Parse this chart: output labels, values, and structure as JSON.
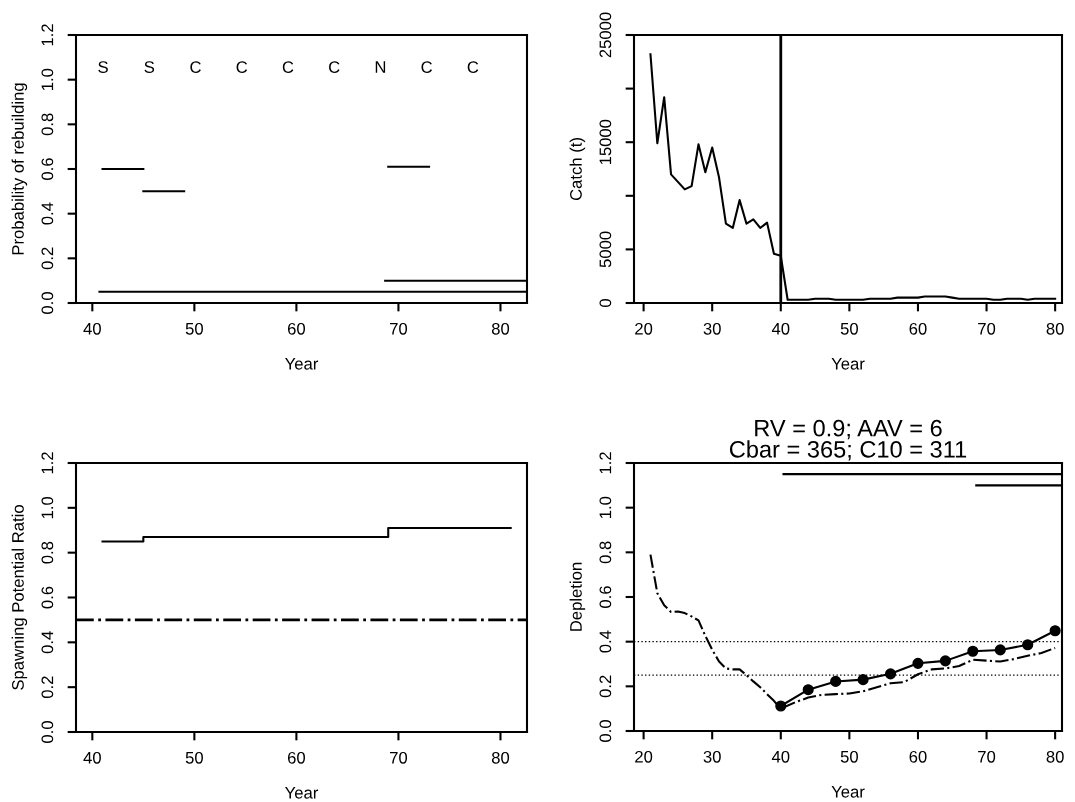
{
  "chart_data": [
    {
      "type": "line",
      "xlabel": "Year",
      "ylabel": "Probability of rebuilding",
      "xlim": [
        38.4,
        82.6
      ],
      "xticks": [
        40,
        50,
        60,
        70,
        80
      ],
      "ylim": [
        0,
        1.2
      ],
      "yticks": [
        {
          "value": 0,
          "label": "0.0"
        },
        {
          "value": 0.2,
          "label": "0.2"
        },
        {
          "value": 0.4,
          "label": "0.4"
        },
        {
          "value": 0.6,
          "label": "0.6"
        },
        {
          "value": 0.8,
          "label": "0.8"
        },
        {
          "value": 1.0,
          "label": "1.0"
        },
        {
          "value": 1.2,
          "label": "1.2"
        }
      ],
      "grid": false,
      "line_style": "solid",
      "series": [
        {
          "color": "#000000",
          "x": [
            41,
            45
          ],
          "values": [
            0.6,
            0.6
          ]
        },
        {
          "color": "#000000",
          "x": [
            45,
            49
          ],
          "values": [
            0.5,
            0.5
          ]
        },
        {
          "color": "#000000",
          "x": [
            69,
            73
          ],
          "values": [
            0.61,
            0.61
          ]
        },
        {
          "color": "#000000",
          "x": [
            40.7,
            82.6
          ],
          "values": [
            0.05,
            0.05
          ]
        },
        {
          "color": "#000000",
          "x": [
            68.7,
            82.6
          ],
          "values": [
            0.1,
            0.1
          ]
        }
      ],
      "annotations": [
        "S",
        "S",
        "C",
        "C",
        "C",
        "C",
        "N",
        "C",
        "C"
      ]
    },
    {
      "type": "line",
      "xlabel": "Year",
      "ylabel": "Catch (t)",
      "xlim": [
        18.6,
        81
      ],
      "xticks": [
        20,
        30,
        40,
        50,
        60,
        70,
        80
      ],
      "ylim": [
        0,
        25000
      ],
      "yticks": [
        0,
        5000,
        {
          "value": 10000,
          "label": null
        },
        15000,
        {
          "value": 20000,
          "label": null
        },
        25000
      ],
      "grid": false,
      "line_style": "solid",
      "series": [
        {
          "color": "#000000",
          "x": [
            21,
            22,
            23,
            24,
            25,
            26,
            27,
            28,
            29,
            30,
            31,
            32,
            33,
            34,
            35,
            36,
            37,
            38,
            39,
            40,
            41,
            42,
            43,
            44,
            45,
            46,
            47,
            48,
            49,
            50,
            51,
            52,
            53,
            54,
            55,
            56,
            57,
            58,
            59,
            60,
            61,
            62,
            63,
            64,
            65,
            66,
            67,
            68,
            69,
            70,
            71,
            72,
            73,
            74,
            75,
            76,
            77,
            78,
            79,
            80
          ],
          "values": [
            23200,
            14900,
            19200,
            12000,
            11300,
            10600,
            10900,
            14800,
            12200,
            14500,
            11700,
            7400,
            7000,
            9600,
            7400,
            7800,
            7000,
            7500,
            4600,
            4400,
            300,
            300,
            300,
            300,
            400,
            400,
            400,
            300,
            300,
            300,
            300,
            300,
            400,
            400,
            400,
            400,
            500,
            500,
            500,
            500,
            600,
            600,
            600,
            600,
            500,
            400,
            400,
            400,
            400,
            400,
            300,
            300,
            400,
            400,
            400,
            300,
            400,
            400,
            400,
            400
          ]
        }
      ],
      "ref_lines": [
        {
          "axis": "x",
          "value": 40,
          "label": null,
          "color": "#000000",
          "line_style": "solid"
        }
      ]
    },
    {
      "type": "step",
      "xlabel": "Year",
      "ylabel": "Spawning Potential Ratio",
      "xlim": [
        38.4,
        82.6
      ],
      "xticks": [
        40,
        50,
        60,
        70,
        80
      ],
      "ylim": [
        0,
        1.2
      ],
      "yticks": [
        {
          "value": 0,
          "label": "0.0"
        },
        {
          "value": 0.2,
          "label": "0.2"
        },
        {
          "value": 0.4,
          "label": "0.4"
        },
        {
          "value": 0.6,
          "label": "0.6"
        },
        {
          "value": 0.8,
          "label": "0.8"
        },
        {
          "value": 1.0,
          "label": "1.0"
        },
        {
          "value": 1.2,
          "label": "1.2"
        }
      ],
      "grid": false,
      "line_style": "solid",
      "series": [
        {
          "color": "#000000",
          "x": [
            41,
            45,
            49,
            53,
            57,
            61,
            65,
            69,
            73,
            77,
            81
          ],
          "values": [
            0.85,
            0.87,
            0.87,
            0.87,
            0.87,
            0.87,
            0.87,
            0.91,
            0.91,
            0.91,
            0.91
          ]
        }
      ],
      "ref_lines": [
        {
          "axis": "y",
          "value": 0.5,
          "label": null,
          "color": "#000000",
          "line_style": "dashed"
        }
      ]
    },
    {
      "type": "line",
      "title": "RV = 0.9; AAV = 6\nCbar = 365; C10 = 311",
      "xlabel": "Year",
      "ylabel": "Depletion",
      "xlim": [
        18.6,
        81
      ],
      "xticks": [
        20,
        30,
        40,
        50,
        60,
        70,
        80
      ],
      "ylim": [
        0,
        1.2
      ],
      "yticks": [
        {
          "value": 0,
          "label": "0.0"
        },
        {
          "value": 0.2,
          "label": "0.2"
        },
        {
          "value": 0.4,
          "label": "0.4"
        },
        {
          "value": 0.6,
          "label": "0.6"
        },
        {
          "value": 0.8,
          "label": "0.8"
        },
        {
          "value": 1.0,
          "label": "1.0"
        },
        {
          "value": 1.2,
          "label": "1.2"
        }
      ],
      "grid": false,
      "series": [
        {
          "color": "#000000",
          "line_style": "dashed",
          "marker": "none",
          "x": [
            21,
            22,
            23,
            24,
            25,
            26,
            27,
            28,
            29,
            30,
            31,
            32,
            33,
            34,
            35,
            36,
            37,
            38,
            39,
            40,
            42,
            44,
            46,
            48,
            50,
            52,
            54,
            56,
            58,
            60,
            62,
            64,
            66,
            68,
            70,
            72,
            74,
            76,
            78,
            80
          ],
          "values": [
            0.79,
            0.617,
            0.563,
            0.533,
            0.535,
            0.528,
            0.513,
            0.495,
            0.426,
            0.364,
            0.311,
            0.28,
            0.276,
            0.276,
            0.25,
            0.222,
            0.196,
            0.165,
            0.135,
            0.1,
            0.127,
            0.15,
            0.162,
            0.165,
            0.168,
            0.178,
            0.196,
            0.214,
            0.219,
            0.254,
            0.276,
            0.28,
            0.291,
            0.319,
            0.315,
            0.311,
            0.322,
            0.337,
            0.349,
            0.372
          ]
        },
        {
          "color": "#000000",
          "line_style": "solid",
          "marker": "circle",
          "x": [
            40,
            44,
            48,
            52,
            56,
            60,
            64,
            68,
            72,
            76,
            80
          ],
          "values": [
            0.112,
            0.185,
            0.222,
            0.23,
            0.256,
            0.303,
            0.314,
            0.357,
            0.363,
            0.386,
            0.449
          ]
        },
        {
          "color": "#000000",
          "line_style": "solid",
          "marker": "none",
          "x": [
            40.4,
            81
          ],
          "values": [
            1.15,
            1.15
          ]
        },
        {
          "color": "#000000",
          "line_style": "solid",
          "marker": "none",
          "x": [
            68.5,
            81
          ],
          "values": [
            1.1,
            1.1
          ]
        }
      ],
      "ref_lines": [
        {
          "axis": "y",
          "value": 0.4,
          "label": null,
          "color": "#000000",
          "line_style": "dotted"
        },
        {
          "axis": "y",
          "value": 0.25,
          "label": null,
          "color": "#000000",
          "line_style": "dotted"
        }
      ]
    }
  ]
}
